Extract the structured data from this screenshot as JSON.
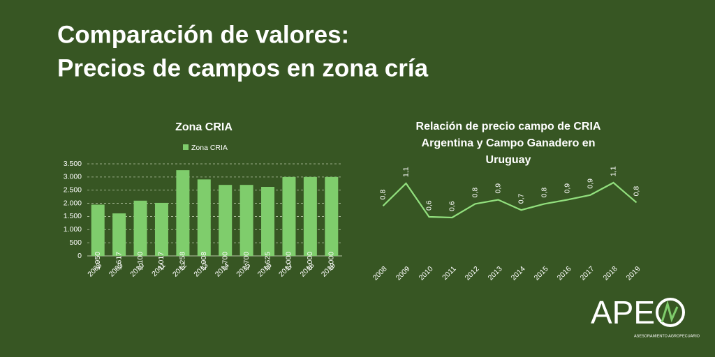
{
  "header": {
    "title": [
      "Comparación de valores:",
      "Precios de campos en zona cría"
    ]
  },
  "logo": {
    "name": "APE",
    "tagline": "ASESORAMIENTO AGROPECUARIO"
  },
  "chart_data": [
    {
      "type": "bar",
      "title": [
        "Zona CRIA"
      ],
      "categories": [
        "2008",
        "2009",
        "2010",
        "2011",
        "2012",
        "2013",
        "2014",
        "2015",
        "2016",
        "2017",
        "2018",
        "2019"
      ],
      "series": [
        {
          "name": "Zona CRIA",
          "color": "#7fcd6c",
          "values": [
            1950,
            1617,
            2100,
            2017,
            3258,
            2908,
            2700,
            2700,
            2625,
            3000,
            3000,
            3000
          ],
          "value_labels": [
            "1.950",
            "1.617",
            "2.100",
            "2.017",
            "3.258",
            "2.908",
            "2.700",
            "2.700",
            "2.625",
            "3.000",
            "3.000",
            "3.000"
          ]
        }
      ],
      "ylim": [
        0,
        3500
      ],
      "yticks": [
        0,
        {
          "value": 500,
          "label": "500"
        },
        {
          "value": 1000,
          "label": "1.000"
        },
        {
          "value": 1500,
          "label": "1.500"
        },
        {
          "value": 2000,
          "label": "2.000"
        },
        {
          "value": 2500,
          "label": "2.500"
        },
        {
          "value": 3000,
          "label": "3.000"
        },
        {
          "value": 3500,
          "label": "3.500"
        }
      ],
      "grid": true,
      "legend": "top"
    },
    {
      "type": "line",
      "title": [
        "Relación de precio campo de CRIA",
        "Argentina y Campo Ganadero en",
        "Uruguay"
      ],
      "categories": [
        "2008",
        "2009",
        "2010",
        "2011",
        "2012",
        "2013",
        "2014",
        "2015",
        "2016",
        "2017",
        "2018",
        "2019"
      ],
      "series": [
        {
          "name": "Relación",
          "color": "#92e07e",
          "values": [
            0.77,
            1.1,
            0.61,
            0.6,
            0.8,
            0.86,
            0.71,
            0.8,
            0.86,
            0.93,
            1.11,
            0.82
          ],
          "value_labels": [
            "0,8",
            "1,1",
            "0,6",
            "0,6",
            "0,8",
            "0,9",
            "0,7",
            "0,8",
            "0,9",
            "0,9",
            "1,1",
            "0,8"
          ]
        }
      ],
      "grid": false,
      "legend": "none"
    }
  ]
}
